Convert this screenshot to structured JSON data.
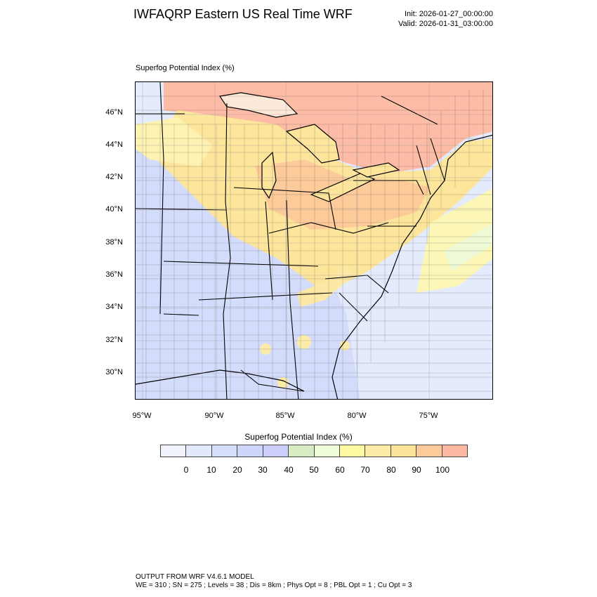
{
  "header": {
    "title": "IWFAQRP Eastern US Real Time WRF",
    "init": "Init: 2026-01-27_00:00:00",
    "valid": "Valid: 2026-01-31_03:00:00"
  },
  "map": {
    "field_label": "Superfog Potential Index   (%)",
    "lat_labels": [
      "46°N",
      "44°N",
      "42°N",
      "40°N",
      "38°N",
      "36°N",
      "34°N",
      "32°N",
      "30°N"
    ],
    "lon_labels": [
      "95°W",
      "90°W",
      "85°W",
      "80°W",
      "75°W"
    ]
  },
  "legend": {
    "title": "Superfog Potential Index  (%)",
    "colors": [
      "#f0f3fb",
      "#e3e9fc",
      "#d5dffb",
      "#cdd5fa",
      "#cccdf8",
      "#d8ecc4",
      "#eefcd9",
      "#fefaa4",
      "#fdeba8",
      "#fde29a",
      "#fdcb9a",
      "#fdb9a2"
    ],
    "tick_labels": [
      "0",
      "10",
      "20",
      "30",
      "40",
      "50",
      "60",
      "70",
      "80",
      "90",
      "100"
    ]
  },
  "footer": {
    "line1": "OUTPUT FROM WRF V4.6.1 MODEL",
    "line2": "WE = 310 ; SN = 275 ; Levels = 38 ; Dis = 8km ; Phys Opt = 8 ; PBL Opt = 1 ; Cu Opt = 3"
  }
}
